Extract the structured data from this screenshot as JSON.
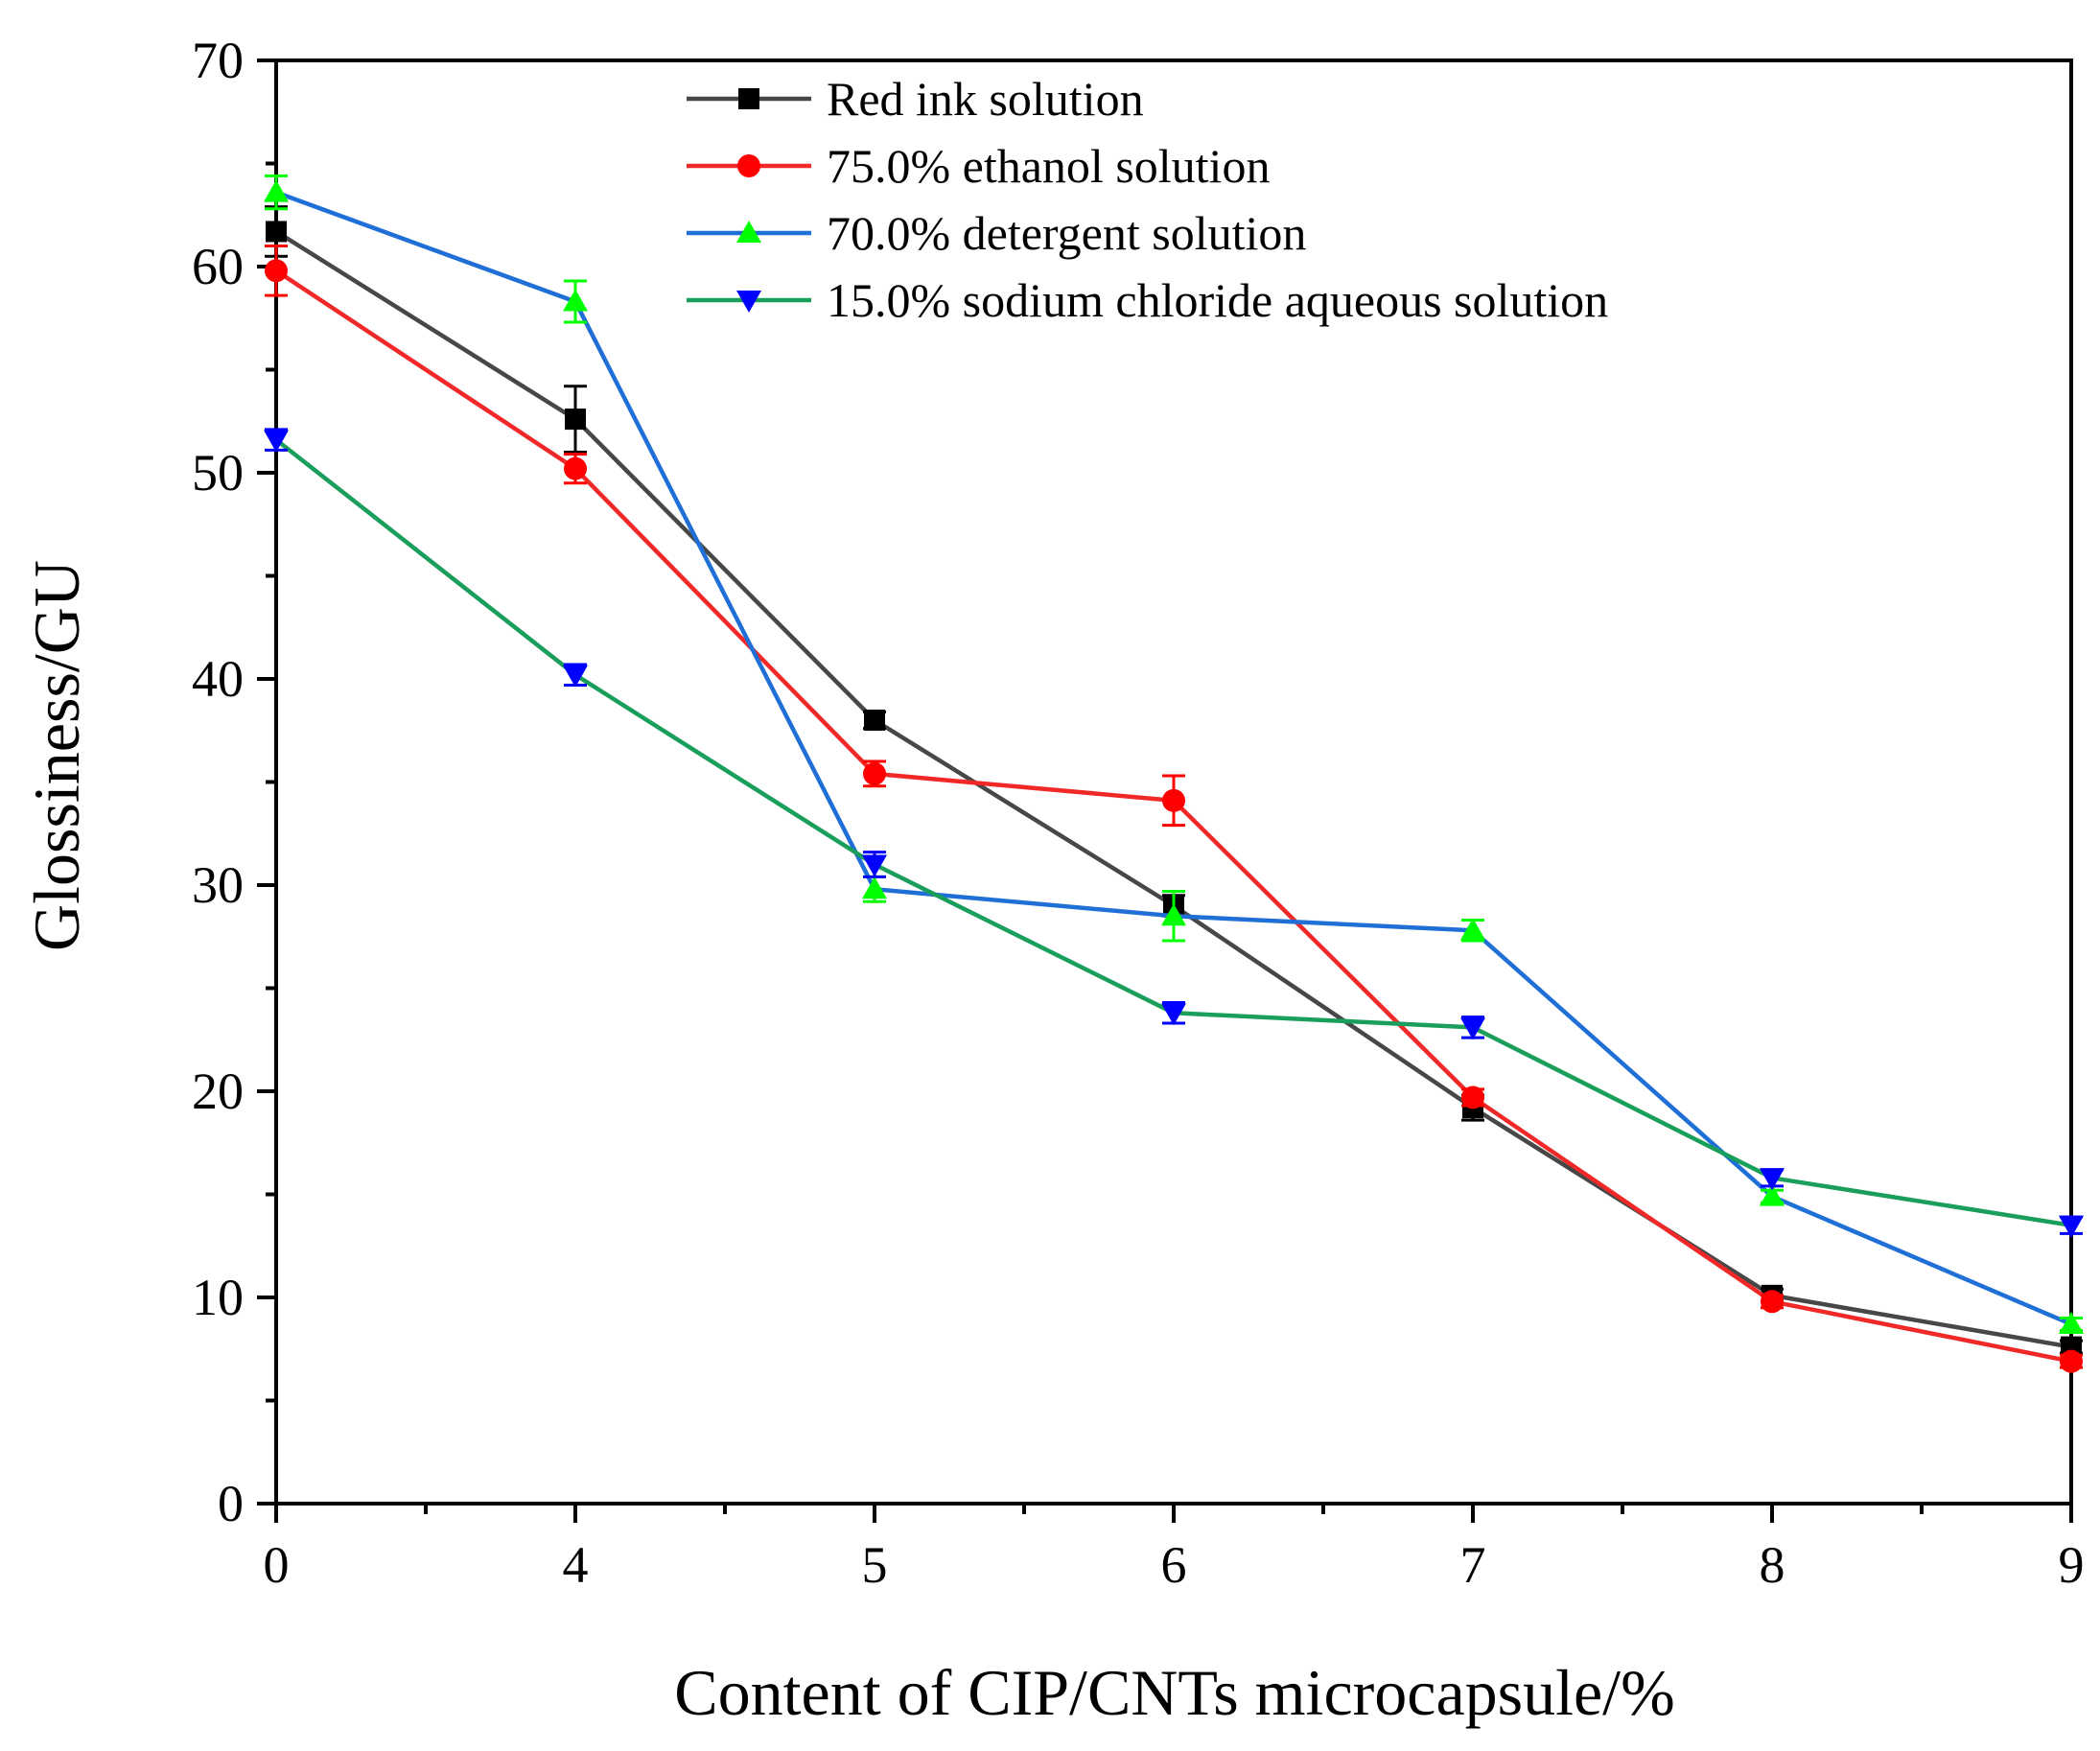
{
  "chart_data": {
    "type": "line",
    "title": "",
    "xlabel": "Content of CIP/CNTs microcapsule/%",
    "ylabel": "Glossiness/GU",
    "categories": [
      "0",
      "4",
      "5",
      "6",
      "7",
      "8",
      "9"
    ],
    "ylim": [
      0,
      70
    ],
    "yticks": [
      "0",
      "10",
      "20",
      "30",
      "40",
      "50",
      "60",
      "70"
    ],
    "ytick_values": [
      0,
      10,
      20,
      30,
      40,
      50,
      60,
      70
    ],
    "grid": false,
    "legend_position": "top",
    "series": [
      {
        "name": "Red ink solution",
        "line_color": "#474747",
        "marker_color": "#000000",
        "marker": "square",
        "values": [
          61.7,
          52.6,
          38.0,
          29.0,
          19.2,
          10.1,
          7.6
        ],
        "errors": [
          1.2,
          1.6,
          0.4,
          0.5,
          0.6,
          0.3,
          0.3
        ]
      },
      {
        "name": "75.0% ethanol solution",
        "line_color": "#f02828",
        "marker_color": "#ff0000",
        "marker": "circle",
        "values": [
          59.8,
          50.2,
          35.4,
          34.1,
          19.7,
          9.8,
          6.9
        ],
        "errors": [
          1.2,
          0.7,
          0.6,
          1.2,
          0.4,
          0.3,
          0.3
        ]
      },
      {
        "name": "70.0% detergent solution",
        "line_color": "#1f6fd6",
        "marker_color": "#00ff00",
        "marker": "triangle-up",
        "values": [
          63.6,
          58.3,
          29.8,
          28.5,
          27.8,
          14.9,
          8.7
        ],
        "errors": [
          0.8,
          1.0,
          0.6,
          1.2,
          0.5,
          0.3,
          0.3
        ]
      },
      {
        "name": "15.0% sodium chloride aqueous solution",
        "line_color": "#1a9e5c",
        "marker_color": "#0000ff",
        "marker": "triangle-down",
        "values": [
          51.6,
          40.2,
          31.0,
          23.8,
          23.1,
          15.8,
          13.5
        ],
        "errors": [
          0.5,
          0.5,
          0.6,
          0.5,
          0.5,
          0.4,
          0.4
        ]
      }
    ]
  }
}
